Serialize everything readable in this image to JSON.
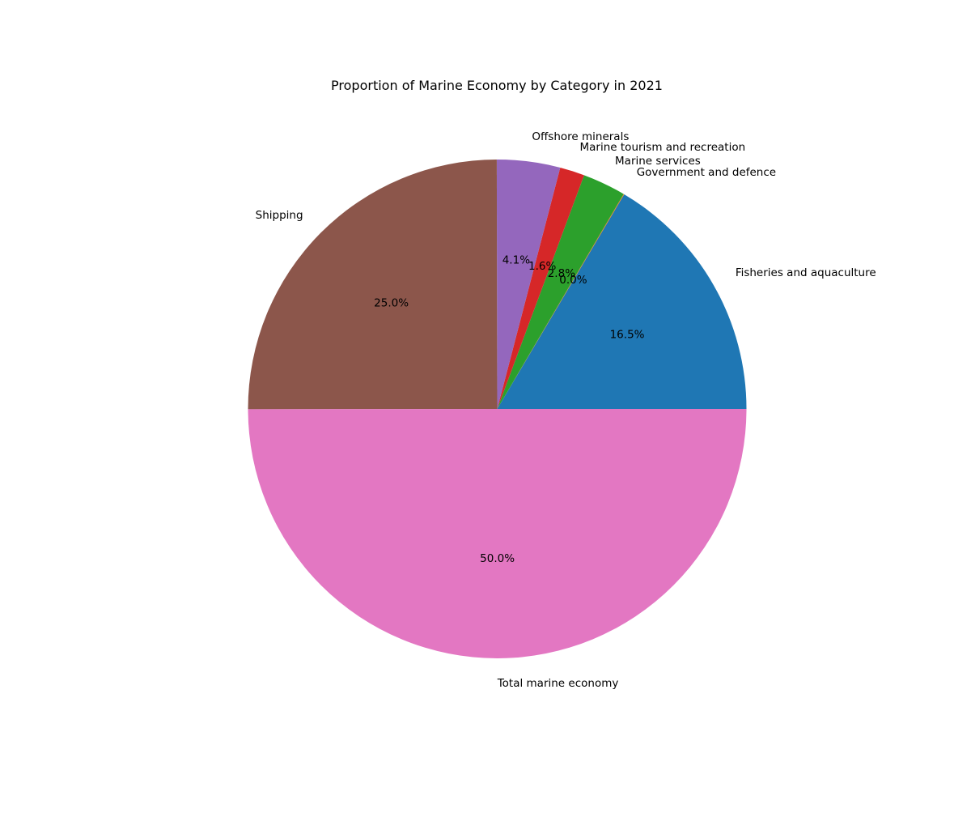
{
  "chart_data": {
    "type": "pie",
    "title": "Proportion of Marine Economy by Category in 2021",
    "start_angle_deg": 0,
    "direction": "counterclockwise",
    "label_format": "{pct}%",
    "slices": [
      {
        "label": "Fisheries and aquaculture",
        "percent": 16.5,
        "percent_label": "16.5%",
        "color": "#1f77b4"
      },
      {
        "label": "Government and defence",
        "percent": 0.04,
        "percent_label": "0.0%",
        "color": "#ff7f0e"
      },
      {
        "label": "Marine services",
        "percent": 2.8,
        "percent_label": "2.8%",
        "color": "#2ca02c"
      },
      {
        "label": "Marine tourism and recreation",
        "percent": 1.6,
        "percent_label": "1.6%",
        "color": "#d62728"
      },
      {
        "label": "Offshore minerals",
        "percent": 4.1,
        "percent_label": "4.1%",
        "color": "#9467bd"
      },
      {
        "label": "Shipping",
        "percent": 25.0,
        "percent_label": "25.0%",
        "color": "#8c564b"
      },
      {
        "label": "Total marine economy",
        "percent": 50.0,
        "percent_label": "50.0%",
        "color": "#e377c2"
      }
    ]
  }
}
